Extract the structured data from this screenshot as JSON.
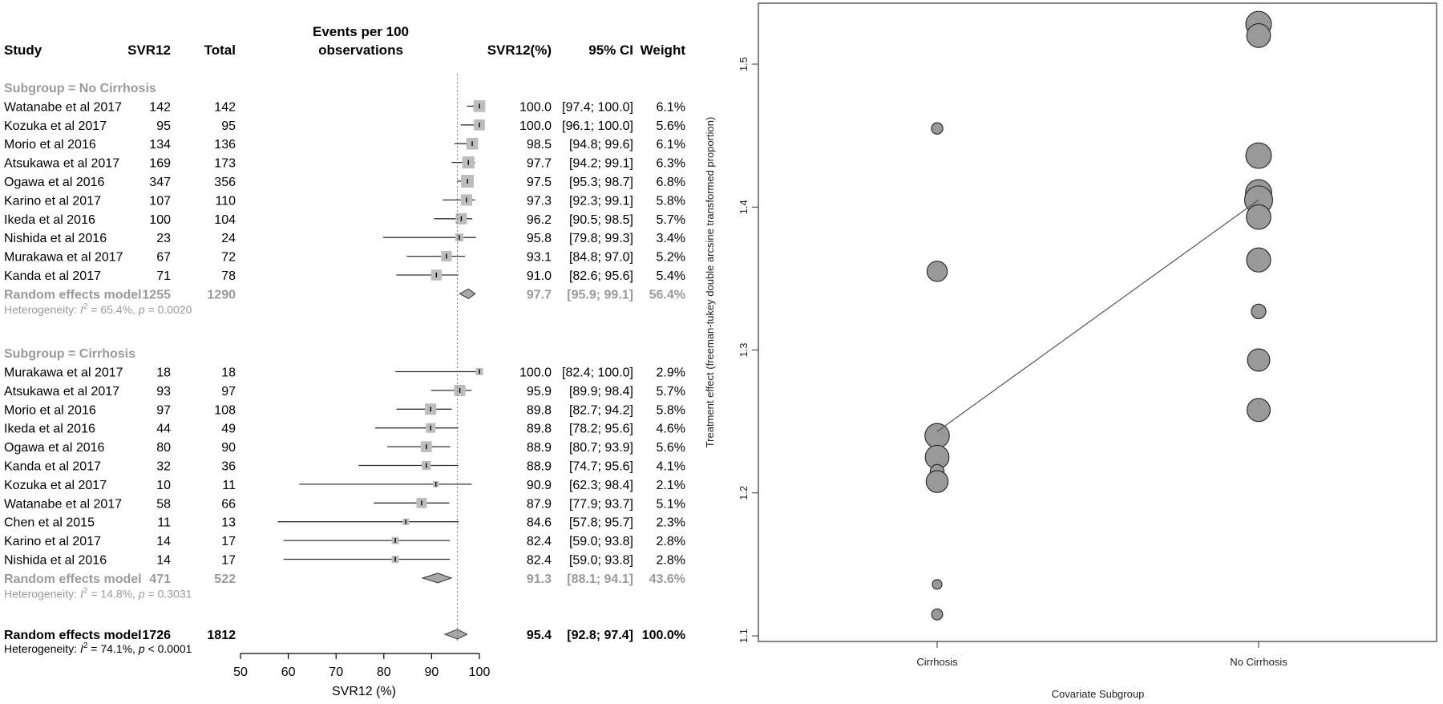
{
  "forest": {
    "headers": {
      "study": "Study",
      "events": "SVR12",
      "total": "Total",
      "plot_line1": "Events per 100",
      "plot_line2": "observations",
      "est": "SVR12(%)",
      "ci": "95% CI",
      "weight": "Weight"
    },
    "subgroups": [
      {
        "title": "Subgroup = No Cirrhosis",
        "studies": [
          {
            "study": "Watanabe et al 2017",
            "events": "142",
            "total": "142",
            "est": 100.0,
            "lo": 97.4,
            "hi": 100.0,
            "est_text": "100.0",
            "ci": "[97.4; 100.0]",
            "weight": "6.1%",
            "w": 6.1
          },
          {
            "study": "Kozuka et al 2017",
            "events": "95",
            "total": "95",
            "est": 100.0,
            "lo": 96.1,
            "hi": 100.0,
            "est_text": "100.0",
            "ci": "[96.1; 100.0]",
            "weight": "5.6%",
            "w": 5.6
          },
          {
            "study": "Morio et al 2016",
            "events": "134",
            "total": "136",
            "est": 98.5,
            "lo": 94.8,
            "hi": 99.6,
            "est_text": "98.5",
            "ci": "[94.8; 99.6]",
            "weight": "6.1%",
            "w": 6.1
          },
          {
            "study": "Atsukawa et al 2017",
            "events": "169",
            "total": "173",
            "est": 97.7,
            "lo": 94.2,
            "hi": 99.1,
            "est_text": "97.7",
            "ci": "[94.2; 99.1]",
            "weight": "6.3%",
            "w": 6.3
          },
          {
            "study": "Ogawa et al 2016",
            "events": "347",
            "total": "356",
            "est": 97.5,
            "lo": 95.3,
            "hi": 98.7,
            "est_text": "97.5",
            "ci": "[95.3; 98.7]",
            "weight": "6.8%",
            "w": 6.8
          },
          {
            "study": "Karino et al 2017",
            "events": "107",
            "total": "110",
            "est": 97.3,
            "lo": 92.3,
            "hi": 99.1,
            "est_text": "97.3",
            "ci": "[92.3; 99.1]",
            "weight": "5.8%",
            "w": 5.8
          },
          {
            "study": "Ikeda et al 2016",
            "events": "100",
            "total": "104",
            "est": 96.2,
            "lo": 90.5,
            "hi": 98.5,
            "est_text": "96.2",
            "ci": "[90.5; 98.5]",
            "weight": "5.7%",
            "w": 5.7
          },
          {
            "study": "Nishida et al 2016",
            "events": "23",
            "total": "24",
            "est": 95.8,
            "lo": 79.8,
            "hi": 99.3,
            "est_text": "95.8",
            "ci": "[79.8; 99.3]",
            "weight": "3.4%",
            "w": 3.4
          },
          {
            "study": "Murakawa et al 2017",
            "events": "67",
            "total": "72",
            "est": 93.1,
            "lo": 84.8,
            "hi": 97.0,
            "est_text": "93.1",
            "ci": "[84.8; 97.0]",
            "weight": "5.2%",
            "w": 5.2
          },
          {
            "study": "Kanda et al 2017",
            "events": "71",
            "total": "78",
            "est": 91.0,
            "lo": 82.6,
            "hi": 95.6,
            "est_text": "91.0",
            "ci": "[82.6; 95.6]",
            "weight": "5.4%",
            "w": 5.4
          }
        ],
        "pooled": {
          "label": "Random effects model",
          "events": "1255",
          "total": "1290",
          "est": 97.7,
          "lo": 95.9,
          "hi": 99.1,
          "est_text": "97.7",
          "ci": "[95.9; 99.1]",
          "weight": "56.4%"
        },
        "het_prefix": "Heterogeneity: ",
        "het_i": "I",
        "het_sup": "2",
        "het_rest": " = 65.4%, ",
        "het_p": "p",
        "het_pval": " = 0.0020"
      },
      {
        "title": "Subgroup = Cirrhosis",
        "studies": [
          {
            "study": "Murakawa et al 2017",
            "events": "18",
            "total": "18",
            "est": 100.0,
            "lo": 82.4,
            "hi": 100.0,
            "est_text": "100.0",
            "ci": "[82.4; 100.0]",
            "weight": "2.9%",
            "w": 2.9
          },
          {
            "study": "Atsukawa et al 2017",
            "events": "93",
            "total": "97",
            "est": 95.9,
            "lo": 89.9,
            "hi": 98.4,
            "est_text": "95.9",
            "ci": "[89.9; 98.4]",
            "weight": "5.7%",
            "w": 5.7
          },
          {
            "study": "Morio et al 2016",
            "events": "97",
            "total": "108",
            "est": 89.8,
            "lo": 82.7,
            "hi": 94.2,
            "est_text": "89.8",
            "ci": "[82.7; 94.2]",
            "weight": "5.8%",
            "w": 5.8
          },
          {
            "study": "Ikeda et al 2016",
            "events": "44",
            "total": "49",
            "est": 89.8,
            "lo": 78.2,
            "hi": 95.6,
            "est_text": "89.8",
            "ci": "[78.2; 95.6]",
            "weight": "4.6%",
            "w": 4.6
          },
          {
            "study": "Ogawa et al 2016",
            "events": "80",
            "total": "90",
            "est": 88.9,
            "lo": 80.7,
            "hi": 93.9,
            "est_text": "88.9",
            "ci": "[80.7; 93.9]",
            "weight": "5.6%",
            "w": 5.6
          },
          {
            "study": "Kanda et al 2017",
            "events": "32",
            "total": "36",
            "est": 88.9,
            "lo": 74.7,
            "hi": 95.6,
            "est_text": "88.9",
            "ci": "[74.7; 95.6]",
            "weight": "4.1%",
            "w": 4.1
          },
          {
            "study": "Kozuka et al 2017",
            "events": "10",
            "total": "11",
            "est": 90.9,
            "lo": 62.3,
            "hi": 98.4,
            "est_text": "90.9",
            "ci": "[62.3; 98.4]",
            "weight": "2.1%",
            "w": 2.1
          },
          {
            "study": "Watanabe et al 2017",
            "events": "58",
            "total": "66",
            "est": 87.9,
            "lo": 77.9,
            "hi": 93.7,
            "est_text": "87.9",
            "ci": "[77.9; 93.7]",
            "weight": "5.1%",
            "w": 5.1
          },
          {
            "study": "Chen et al 2015",
            "events": "11",
            "total": "13",
            "est": 84.6,
            "lo": 57.8,
            "hi": 95.7,
            "est_text": "84.6",
            "ci": "[57.8; 95.7]",
            "weight": "2.3%",
            "w": 2.3
          },
          {
            "study": "Karino et al 2017",
            "events": "14",
            "total": "17",
            "est": 82.4,
            "lo": 59.0,
            "hi": 93.8,
            "est_text": "82.4",
            "ci": "[59.0; 93.8]",
            "weight": "2.8%",
            "w": 2.8
          },
          {
            "study": "Nishida et al 2016",
            "events": "14",
            "total": "17",
            "est": 82.4,
            "lo": 59.0,
            "hi": 93.8,
            "est_text": "82.4",
            "ci": "[59.0; 93.8]",
            "weight": "2.8%",
            "w": 2.8
          }
        ],
        "pooled": {
          "label": "Random effects model",
          "events": "471",
          "total": "522",
          "est": 91.3,
          "lo": 88.1,
          "hi": 94.1,
          "est_text": "91.3",
          "ci": "[88.1; 94.1]",
          "weight": "43.6%"
        },
        "het_prefix": "Heterogeneity: ",
        "het_i": "I",
        "het_sup": "2",
        "het_rest": " = 14.8%, ",
        "het_p": "p",
        "het_pval": " = 0.3031"
      }
    ],
    "overall": {
      "label": "Random effects model",
      "events": "1726",
      "total": "1812",
      "est": 95.4,
      "lo": 92.8,
      "hi": 97.4,
      "est_text": "95.4",
      "ci": "[92.8; 97.4]",
      "weight": "100.0%"
    },
    "overall_het": {
      "prefix": "Heterogeneity: ",
      "i": "I",
      "sup": "2",
      "rest": " = 74.1%, ",
      "p": "p",
      "pval": " < 0.0001"
    },
    "x_axis": {
      "ticks": [
        50,
        60,
        70,
        80,
        90,
        100
      ],
      "label": "SVR12 (%)",
      "range": [
        50,
        100
      ],
      "reference": 95.4
    }
  },
  "chart_data": {
    "type": "scatter",
    "subtype": "bubble",
    "xlabel": "Covariate Subgroup",
    "ylabel": "Treatment effect (freeman-tukey double arcsine transformed proportion)",
    "categories": [
      "Cirrhosis",
      "No Cirrhosis"
    ],
    "ylim": [
      1.1,
      1.55
    ],
    "yticks": [
      1.1,
      1.2,
      1.3,
      1.4,
      1.5
    ],
    "grid": false,
    "points": [
      {
        "x": "Cirrhosis",
        "y": 1.455,
        "size": 2.1
      },
      {
        "x": "Cirrhosis",
        "y": 1.355,
        "size": 4.6
      },
      {
        "x": "Cirrhosis",
        "y": 1.24,
        "size": 5.8
      },
      {
        "x": "Cirrhosis",
        "y": 1.225,
        "size": 5.6
      },
      {
        "x": "Cirrhosis",
        "y": 1.215,
        "size": 2.8
      },
      {
        "x": "Cirrhosis",
        "y": 1.208,
        "size": 5.1
      },
      {
        "x": "Cirrhosis",
        "y": 1.136,
        "size": 1.6
      },
      {
        "x": "Cirrhosis",
        "y": 1.115,
        "size": 2.0
      },
      {
        "x": "No Cirrhosis",
        "y": 1.528,
        "size": 6.1
      },
      {
        "x": "No Cirrhosis",
        "y": 1.52,
        "size": 5.6
      },
      {
        "x": "No Cirrhosis",
        "y": 1.436,
        "size": 6.1
      },
      {
        "x": "No Cirrhosis",
        "y": 1.41,
        "size": 6.3
      },
      {
        "x": "No Cirrhosis",
        "y": 1.405,
        "size": 6.8
      },
      {
        "x": "No Cirrhosis",
        "y": 1.393,
        "size": 5.8
      },
      {
        "x": "No Cirrhosis",
        "y": 1.363,
        "size": 5.7
      },
      {
        "x": "No Cirrhosis",
        "y": 1.327,
        "size": 3.0
      },
      {
        "x": "No Cirrhosis",
        "y": 1.293,
        "size": 5.2
      },
      {
        "x": "No Cirrhosis",
        "y": 1.258,
        "size": 5.4
      }
    ],
    "regression_line": {
      "from": {
        "x": "Cirrhosis",
        "y": 1.243
      },
      "to": {
        "x": "No Cirrhosis",
        "y": 1.405
      }
    }
  },
  "colors": {
    "bubble_fill": "#999999",
    "box_fill": "#bdbdbd",
    "pooled_text": "#9a9a9a",
    "line": "#555555"
  }
}
